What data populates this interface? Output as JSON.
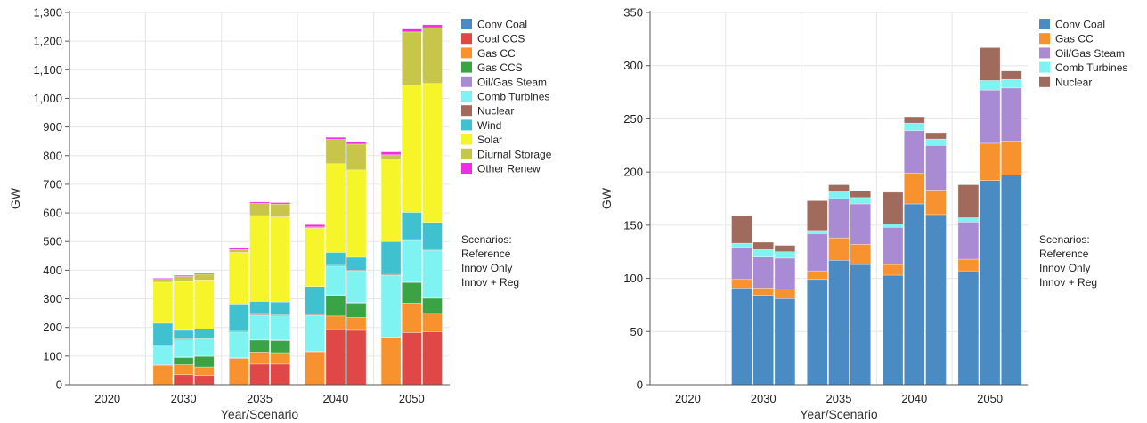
{
  "chart_data": [
    {
      "type": "bar",
      "stacked": true,
      "xlabel": "Year/Scenario",
      "ylabel": "GW",
      "ylim": [
        0,
        1300
      ],
      "yticks": [
        0,
        100,
        200,
        300,
        400,
        500,
        600,
        700,
        800,
        900,
        1000,
        1100,
        1200,
        1300
      ],
      "ytick_labels": [
        "0",
        "100",
        "200",
        "300",
        "400",
        "500",
        "600",
        "700",
        "800",
        "900",
        "1,000",
        "1,100",
        "1,200",
        "1,300"
      ],
      "grid": true,
      "legend_position": "top-right",
      "categories": [
        "2020",
        "2030",
        "2035",
        "2040",
        "2050"
      ],
      "scenarios": [
        "Reference",
        "Innov Only",
        "Innov + Reg"
      ],
      "notes_title": "Scenarios:",
      "notes": [
        "Reference",
        "Innov Only",
        "Innov + Reg"
      ],
      "legend": [
        "Conv Coal",
        "Coal CCS",
        "Gas CC",
        "Gas CCS",
        "Oil/Gas Steam",
        "Comb Turbines",
        "Nuclear",
        "Wind",
        "Solar",
        "Diurnal Storage",
        "Other Renew"
      ],
      "series": [
        {
          "name": "Conv Coal",
          "color": "#4a8bc3",
          "values": [
            [
              0,
              0,
              0
            ],
            [
              0,
              0,
              0
            ],
            [
              0,
              0,
              0
            ],
            [
              0,
              0,
              0
            ],
            [
              0,
              0,
              0
            ]
          ]
        },
        {
          "name": "Coal CCS",
          "color": "#e04848",
          "values": [
            [
              0,
              0,
              0
            ],
            [
              0,
              35,
              32
            ],
            [
              0,
              72,
              72
            ],
            [
              0,
              192,
              190
            ],
            [
              0,
              182,
              185
            ]
          ]
        },
        {
          "name": "Gas CC",
          "color": "#f7922e",
          "values": [
            [
              0,
              0,
              0
            ],
            [
              68,
              35,
              30
            ],
            [
              92,
              42,
              40
            ],
            [
              115,
              48,
              45
            ],
            [
              165,
              103,
              65
            ]
          ]
        },
        {
          "name": "Gas CCS",
          "color": "#3aa346",
          "values": [
            [
              0,
              0,
              0
            ],
            [
              0,
              25,
              37
            ],
            [
              0,
              42,
              42
            ],
            [
              0,
              72,
              50
            ],
            [
              0,
              72,
              52
            ]
          ]
        },
        {
          "name": "Oil/Gas Steam",
          "color": "#a98bd4",
          "values": [
            [
              0,
              0,
              0
            ],
            [
              2,
              2,
              2
            ],
            [
              2,
              2,
              2
            ],
            [
              2,
              2,
              2
            ],
            [
              2,
              2,
              2
            ]
          ]
        },
        {
          "name": "Comb Turbines",
          "color": "#7ff2f2",
          "values": [
            [
              0,
              0,
              0
            ],
            [
              65,
              60,
              60
            ],
            [
              90,
              85,
              85
            ],
            [
              125,
              100,
              110
            ],
            [
              215,
              145,
              165
            ]
          ]
        },
        {
          "name": "Nuclear",
          "color": "#a06b5d",
          "values": [
            [
              0,
              0,
              0
            ],
            [
              3,
              3,
              3
            ],
            [
              3,
              3,
              3
            ],
            [
              3,
              3,
              3
            ],
            [
              3,
              3,
              3
            ]
          ]
        },
        {
          "name": "Wind",
          "color": "#3fc1d0",
          "values": [
            [
              0,
              0,
              0
            ],
            [
              77,
              30,
              30
            ],
            [
              95,
              45,
              45
            ],
            [
              98,
              45,
              45
            ],
            [
              115,
              95,
              95
            ]
          ]
        },
        {
          "name": "Solar",
          "color": "#f5f52a",
          "values": [
            [
              0,
              0,
              0
            ],
            [
              143,
              170,
              172
            ],
            [
              180,
              300,
              297
            ],
            [
              203,
              310,
              305
            ],
            [
              288,
              445,
              485
            ]
          ]
        },
        {
          "name": "Diurnal Storage",
          "color": "#c7c54a",
          "values": [
            [
              0,
              0,
              0
            ],
            [
              10,
              18,
              20
            ],
            [
              10,
              42,
              45
            ],
            [
              5,
              85,
              90
            ],
            [
              15,
              185,
              195
            ]
          ]
        },
        {
          "name": "Other Renew",
          "color": "#ee2ee4",
          "values": [
            [
              0,
              0,
              0
            ],
            [
              4,
              4,
              4
            ],
            [
              5,
              5,
              5
            ],
            [
              8,
              7,
              7
            ],
            [
              10,
              10,
              10
            ]
          ]
        }
      ]
    },
    {
      "type": "bar",
      "stacked": true,
      "xlabel": "Year/Scenario",
      "ylabel": "GW",
      "ylim": [
        0,
        350
      ],
      "yticks": [
        0,
        50,
        100,
        150,
        200,
        250,
        300,
        350
      ],
      "ytick_labels": [
        "0",
        "50",
        "100",
        "150",
        "200",
        "250",
        "300",
        "350"
      ],
      "grid": true,
      "legend_position": "top-right",
      "categories": [
        "2020",
        "2030",
        "2035",
        "2040",
        "2050"
      ],
      "scenarios": [
        "Reference",
        "Innov Only",
        "Innov + Reg"
      ],
      "notes_title": "Scenarios:",
      "notes": [
        "Reference",
        "Innov Only",
        "Innov + Reg"
      ],
      "legend": [
        "Conv Coal",
        "Gas CC",
        "Oil/Gas Steam",
        "Comb Turbines",
        "Nuclear"
      ],
      "series": [
        {
          "name": "Conv Coal",
          "color": "#4a8bc3",
          "values": [
            [
              0,
              0,
              0
            ],
            [
              91,
              84,
              81
            ],
            [
              99,
              117,
              113
            ],
            [
              103,
              170,
              160
            ],
            [
              107,
              192,
              197
            ]
          ]
        },
        {
          "name": "Gas CC",
          "color": "#f7922e",
          "values": [
            [
              0,
              0,
              0
            ],
            [
              8,
              7,
              9
            ],
            [
              8,
              21,
              19
            ],
            [
              10,
              29,
              23
            ],
            [
              11,
              35,
              32
            ]
          ]
        },
        {
          "name": "Oil/Gas Steam",
          "color": "#a98bd4",
          "values": [
            [
              0,
              0,
              0
            ],
            [
              30,
              29,
              29
            ],
            [
              35,
              37,
              38
            ],
            [
              35,
              40,
              42
            ],
            [
              35,
              50,
              50
            ]
          ]
        },
        {
          "name": "Comb Turbines",
          "color": "#7ff2f2",
          "values": [
            [
              0,
              0,
              0
            ],
            [
              4,
              7,
              6
            ],
            [
              3,
              7,
              6
            ],
            [
              3,
              7,
              6
            ],
            [
              4,
              9,
              8
            ]
          ]
        },
        {
          "name": "Nuclear",
          "color": "#a06b5d",
          "values": [
            [
              0,
              0,
              0
            ],
            [
              26,
              7,
              6
            ],
            [
              28,
              6,
              6
            ],
            [
              30,
              6,
              6
            ],
            [
              31,
              31,
              8
            ]
          ]
        }
      ]
    }
  ]
}
